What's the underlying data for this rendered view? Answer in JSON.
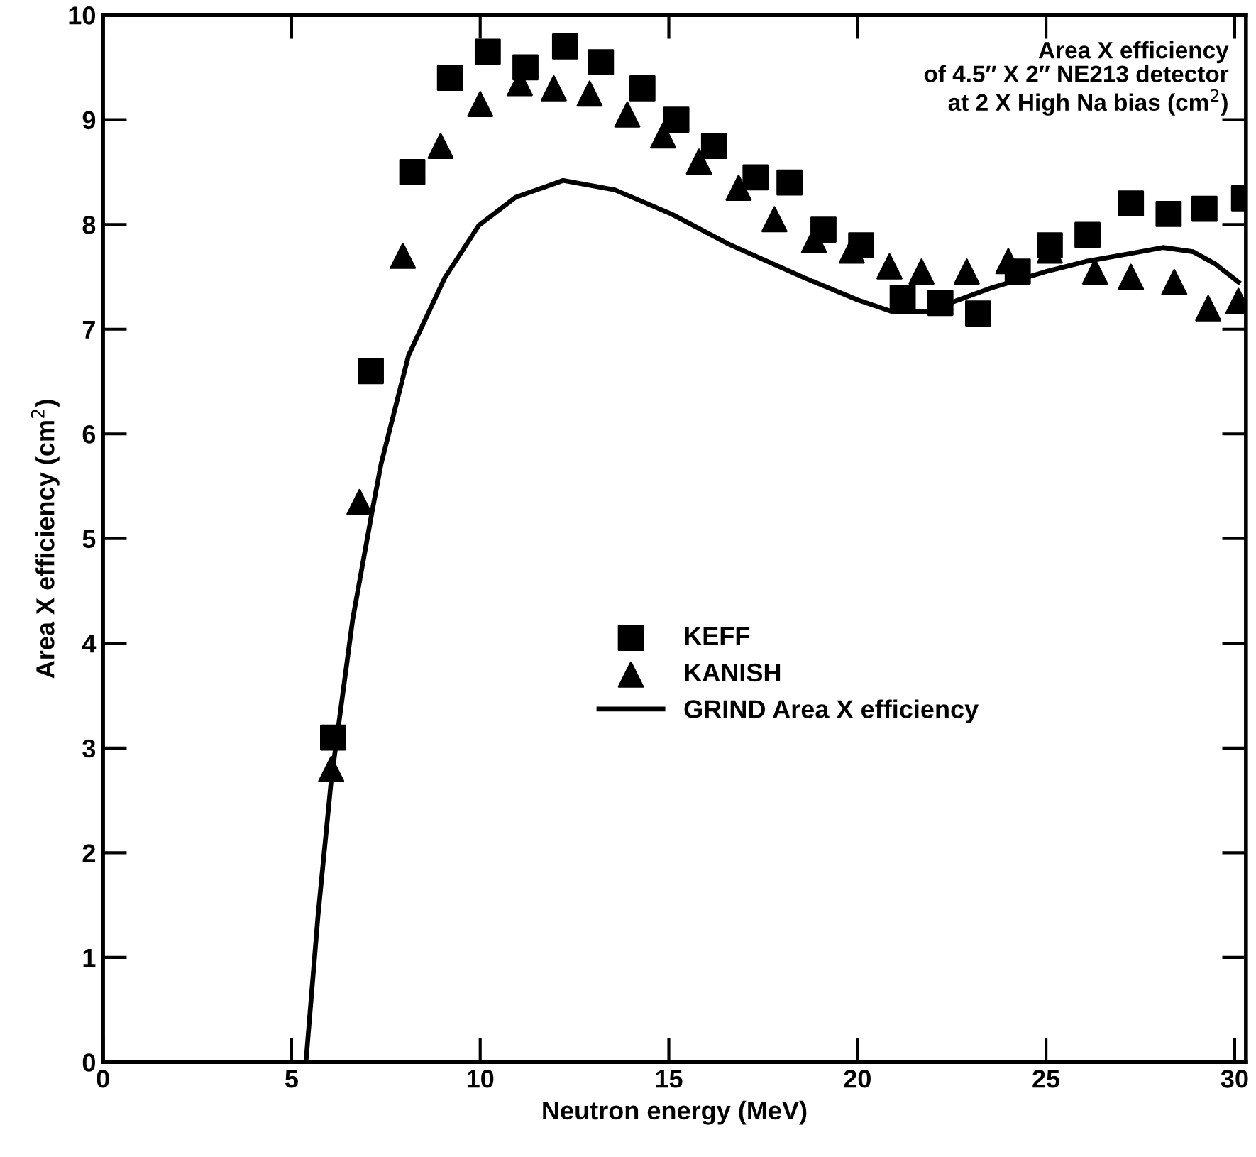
{
  "chart_data": {
    "type": "scatter",
    "xlabel": "Neutron energy (MeV)",
    "ylabel": "Area X efficiency (cm$^{2}$)",
    "annotations": [
      "Area X efficiency\nof 4.5″ X 2″ NE213 detector\nat 2 X High Na bias (cm$^{2}$)"
    ],
    "xlim": [
      0,
      30.3
    ],
    "ylim": [
      0,
      10
    ],
    "xticks": [
      0,
      5,
      10,
      15,
      20,
      25,
      30
    ],
    "yticks": [
      0,
      1,
      2,
      3,
      4,
      5,
      6,
      7,
      8,
      9,
      10
    ],
    "grid": false,
    "legend": "center",
    "series": [
      {
        "name": "KEFF",
        "color": "#000000",
        "marker": "square",
        "x": [
          6.1,
          7.1,
          8.2,
          9.2,
          10.2,
          11.2,
          12.25,
          13.2,
          14.3,
          15.2,
          16.2,
          17.3,
          18.2,
          19.1,
          20.1,
          21.2,
          22.2,
          23.2,
          24.25,
          25.1,
          26.1,
          27.25,
          28.25,
          29.2,
          30.25
        ],
        "values": [
          3.1,
          6.6,
          8.5,
          9.4,
          9.65,
          9.5,
          9.7,
          9.55,
          9.3,
          9.0,
          8.75,
          8.45,
          8.4,
          7.95,
          7.8,
          7.3,
          7.25,
          7.15,
          7.55,
          7.8,
          7.9,
          8.2,
          8.1,
          8.15,
          8.25
        ]
      },
      {
        "name": "KANISH",
        "color": "#000000",
        "marker": "triangle",
        "x": [
          6.05,
          6.8,
          7.95,
          8.95,
          10.0,
          11.05,
          11.95,
          12.9,
          13.9,
          14.85,
          15.8,
          16.85,
          17.8,
          18.85,
          19.85,
          20.85,
          21.7,
          22.9,
          24.0,
          25.1,
          26.3,
          27.25,
          28.4,
          29.3,
          30.1
        ],
        "values": [
          2.8,
          5.35,
          7.7,
          8.75,
          9.15,
          9.35,
          9.3,
          9.25,
          9.05,
          8.85,
          8.6,
          8.35,
          8.05,
          7.85,
          7.75,
          7.6,
          7.55,
          7.55,
          7.65,
          7.75,
          7.55,
          7.5,
          7.45,
          7.2,
          7.27
        ]
      },
      {
        "name": "GRIND Area X efficiency",
        "color": "#000000",
        "type": "line",
        "marker": "none",
        "line_style": "solid",
        "x": [
          5.38,
          5.7,
          6.05,
          6.62,
          7.14,
          7.37,
          8.1,
          9.06,
          9.96,
          10.94,
          12.2,
          13.57,
          15.07,
          16.6,
          18.6,
          20.0,
          20.9,
          21.85,
          23.6,
          25.0,
          26.1,
          27.2,
          28.1,
          28.9,
          29.5,
          30.1
        ],
        "values": [
          0,
          1.4,
          2.69,
          4.23,
          5.27,
          5.71,
          6.75,
          7.49,
          7.99,
          8.26,
          8.42,
          8.33,
          8.1,
          7.81,
          7.49,
          7.28,
          7.17,
          7.17,
          7.4,
          7.55,
          7.65,
          7.72,
          7.78,
          7.74,
          7.62,
          7.45
        ]
      }
    ]
  }
}
